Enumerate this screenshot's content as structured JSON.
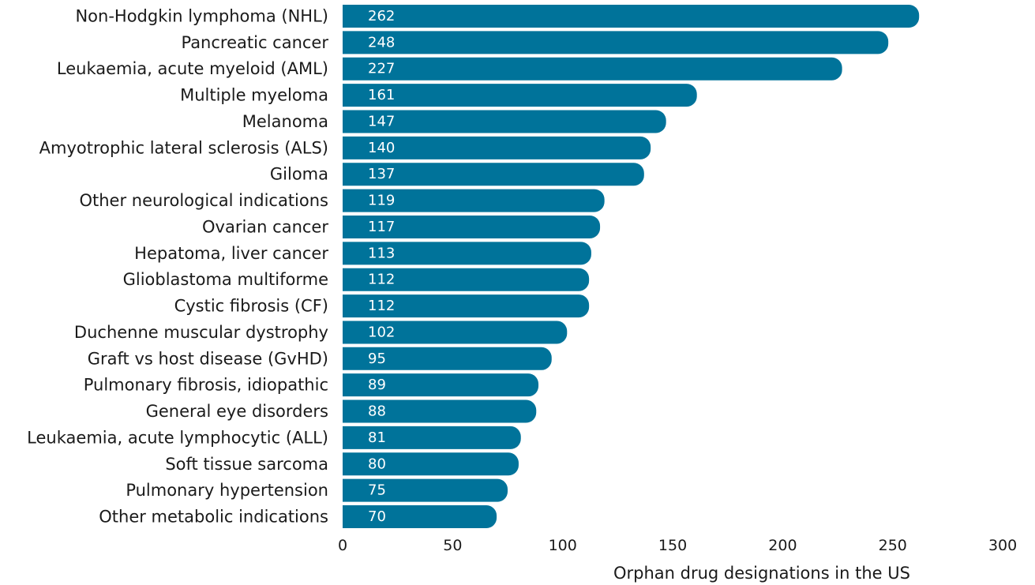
{
  "chart_data": {
    "type": "bar",
    "orientation": "horizontal",
    "categories": [
      "Non-Hodgkin lymphoma (NHL)",
      "Pancreatic cancer",
      "Leukaemia, acute myeloid (AML)",
      "Multiple myeloma",
      "Melanoma",
      "Amyotrophic lateral sclerosis (ALS)",
      "Giloma",
      "Other neurological indications",
      "Ovarian cancer",
      "Hepatoma, liver cancer",
      "Glioblastoma multiforme",
      "Cystic fibrosis (CF)",
      "Duchenne muscular dystrophy",
      "Graft vs host disease (GvHD)",
      "Pulmonary fibrosis, idiopathic",
      "General eye disorders",
      "Leukaemia, acute lymphocytic (ALL)",
      "Soft tissue sarcoma",
      "Pulmonary hypertension",
      "Other metabolic indications"
    ],
    "values": [
      262,
      248,
      227,
      161,
      147,
      140,
      137,
      119,
      117,
      113,
      112,
      112,
      102,
      95,
      89,
      88,
      81,
      80,
      75,
      70
    ],
    "xlabel": "Orphan drug designations in the US",
    "ylabel": "",
    "xlim": [
      0,
      300
    ],
    "xticks": [
      0,
      50,
      100,
      150,
      200,
      250,
      300
    ],
    "grid": false,
    "legend": "none",
    "bar_color": "#00739a",
    "value_label_color": "#ffffff"
  }
}
